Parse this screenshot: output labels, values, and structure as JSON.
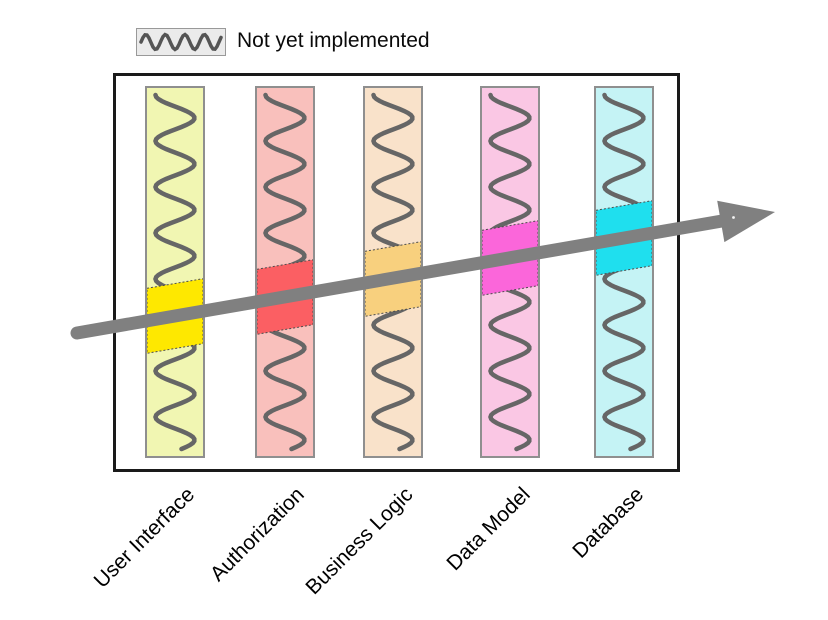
{
  "legend": {
    "label": "Not yet implemented",
    "swatch_fill": "#ebebeb",
    "swatch_border": "#999999",
    "swatch_squiggle_color": "#555555"
  },
  "diagram": {
    "box_border_color": "#1a1a1a",
    "bar_border_color": "#8f8f8f",
    "squiggle_color": "#666666",
    "arrow_color": "#808080",
    "highlight_border_color": "#4d4d4d",
    "layers": [
      {
        "id": "user-interface",
        "label": "User Interface",
        "fill": "#f1f6b2",
        "highlight": "#fee800"
      },
      {
        "id": "authorization",
        "label": "Authorization",
        "fill": "#f9c0bc",
        "highlight": "#fb5f63"
      },
      {
        "id": "business-logic",
        "label": "Business Logic",
        "fill": "#f9e2ca",
        "highlight": "#f8d07e"
      },
      {
        "id": "data-model",
        "label": "Data Model",
        "fill": "#fac7e4",
        "highlight": "#fb66da"
      },
      {
        "id": "database",
        "label": "Database",
        "fill": "#c5f3f5",
        "highlight": "#1fdfee"
      }
    ]
  }
}
